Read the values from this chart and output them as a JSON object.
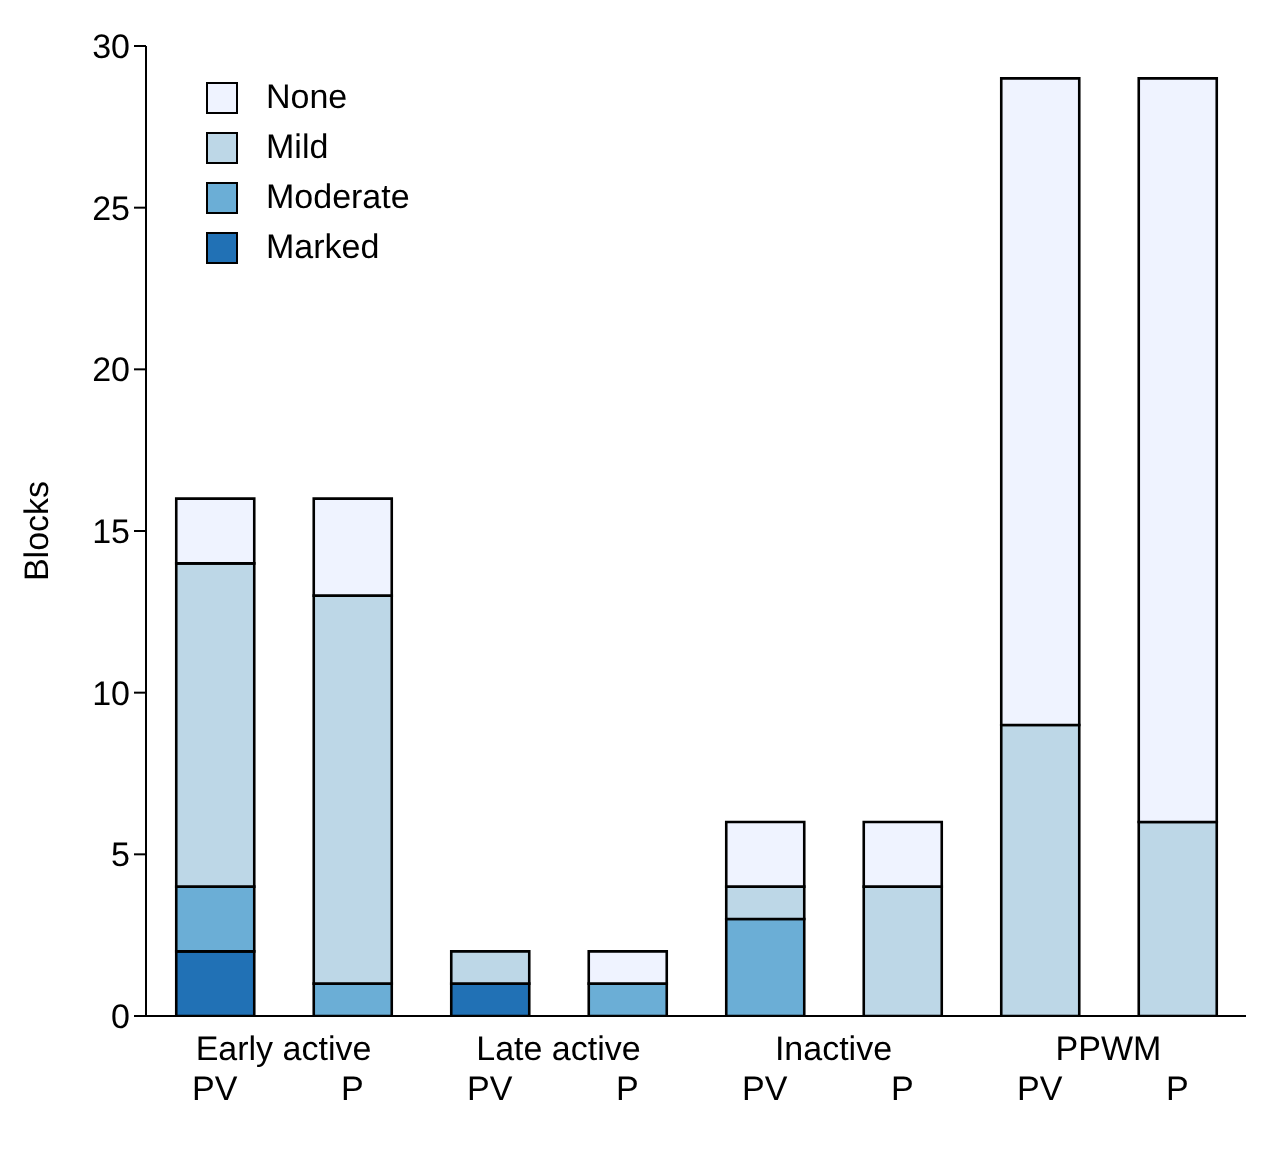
{
  "chart_data": {
    "type": "bar",
    "stacked": true,
    "ylabel": "Blocks",
    "categories": [
      "PV",
      "P",
      "PV",
      "P",
      "PV",
      "P",
      "PV",
      "P"
    ],
    "annotations": [
      "Early active",
      "Late active",
      "Inactive",
      "PPWM"
    ],
    "series": [
      {
        "name": "Marked",
        "color": "#2171b5",
        "values": [
          2,
          0,
          1,
          0,
          0,
          0,
          0,
          0
        ]
      },
      {
        "name": "Moderate",
        "color": "#6baed6",
        "values": [
          2,
          1,
          0,
          1,
          3,
          0,
          0,
          0
        ]
      },
      {
        "name": "Mild",
        "color": "#bdd7e7",
        "values": [
          10,
          12,
          1,
          0,
          1,
          4,
          9,
          6
        ]
      },
      {
        "name": "None",
        "color": "#eff3ff",
        "values": [
          2,
          3,
          0,
          1,
          2,
          2,
          20,
          23
        ]
      }
    ],
    "ylim": [
      0,
      30
    ],
    "yticks": [
      0,
      5,
      10,
      15,
      20,
      25,
      30
    ],
    "grid": false,
    "legend": "top left"
  }
}
